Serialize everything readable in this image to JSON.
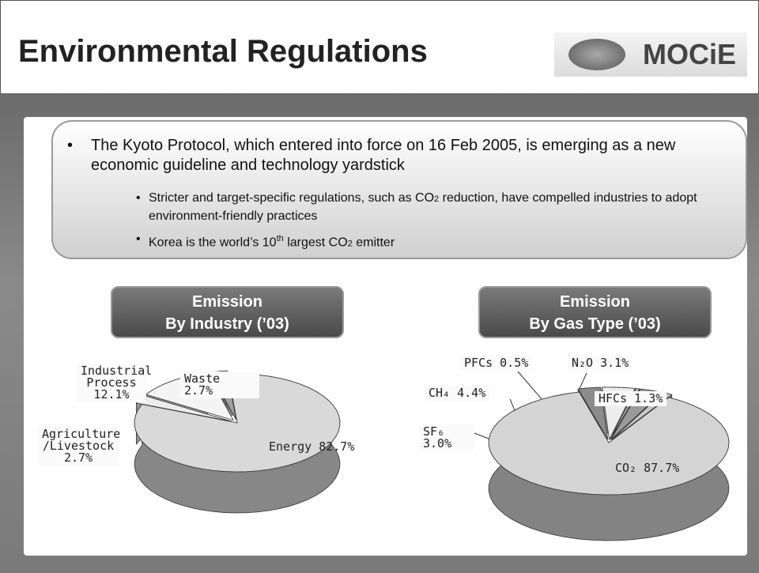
{
  "header": {
    "title": "Environmental Regulations",
    "logo": "MOCiE"
  },
  "bullets": {
    "main": "The Kyoto Protocol, which entered into force on 16 Feb 2005, is emerging as a new economic guideline and technology yardstick",
    "sub": [
      [
        "Stricter and target-specific regulations, such as CO",
        "2",
        " reduction, have compelled industries to adopt environment-friendly practices"
      ],
      [
        "Korea is the world’s 10",
        "th",
        " largest CO",
        "2",
        " emitter"
      ]
    ]
  },
  "chart_data": [
    {
      "type": "pie",
      "title": [
        "Emission",
        "By Industry (’03)"
      ],
      "categories": [
        "Energy",
        "Agriculture /Livestock",
        "Industrial Process",
        "Waste"
      ],
      "values": [
        82.7,
        2.7,
        12.1,
        2.7
      ],
      "value_labels": [
        "82.7%",
        "2.7%",
        "12.1%",
        "2.7%"
      ],
      "colors": [
        "#d9d9d9",
        "#ececec",
        "#f4f4f4",
        "#a0a0a0"
      ]
    },
    {
      "type": "pie",
      "title": [
        "Emission",
        "By Gas Type (’03)"
      ],
      "categories": [
        "CO₂",
        "SF₆",
        "CH₄",
        "PFCs",
        "N₂O",
        "HFCs"
      ],
      "values": [
        87.7,
        3.0,
        4.4,
        0.5,
        3.1,
        1.3
      ],
      "value_labels": [
        "87.7%",
        "3.0%",
        "4.4%",
        "0.5%",
        "3.1%",
        "1.3%"
      ],
      "colors": [
        "#d4d4d4",
        "#8c8c8c",
        "#ededed",
        "#b5b5b5",
        "#9a9a9a",
        "#c8c8c8"
      ]
    }
  ]
}
